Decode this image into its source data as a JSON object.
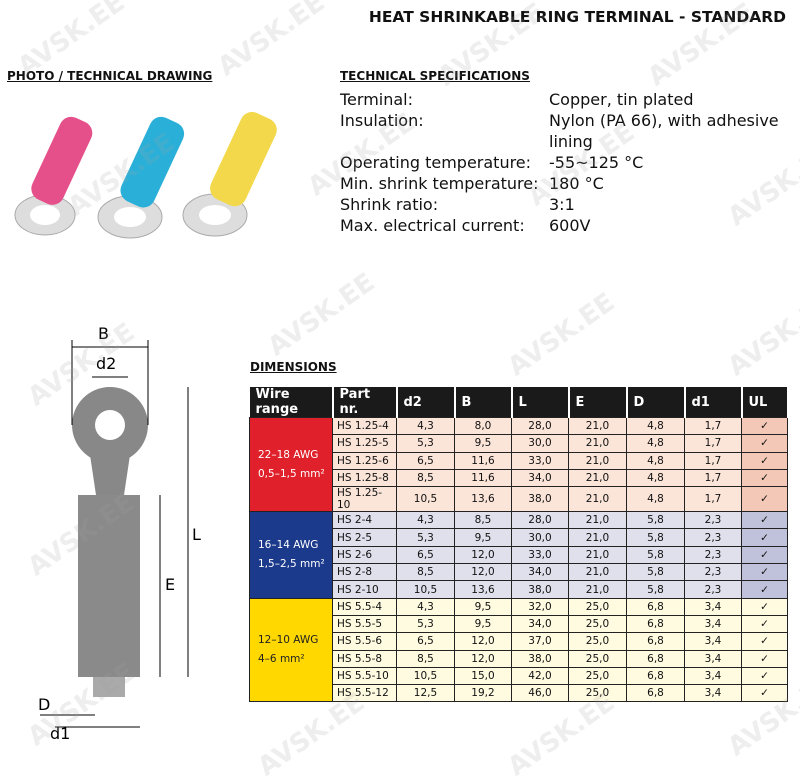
{
  "title": "HEAT SHRINKABLE RING TERMINAL - STANDARD",
  "photo_heading": "PHOTO / TECHNICAL DRAWING",
  "specs_heading": "TECHNICAL SPECIFICATIONS",
  "specs": [
    {
      "k": "Terminal:",
      "v": "Copper, tin plated"
    },
    {
      "k": "Insulation:",
      "v": "Nylon (PA 66), with adhesive lining"
    },
    {
      "k": "Operating temperature:",
      "v": "-55~125 °C"
    },
    {
      "k": "Min. shrink temperature:",
      "v": "180 °C"
    },
    {
      "k": "Shrink ratio:",
      "v": "3:1"
    },
    {
      "k": "Max. electrical current:",
      "v": "600V"
    }
  ],
  "drawing_labels": {
    "B": "B",
    "d2": "d2",
    "L": "L",
    "E": "E",
    "D": "D",
    "d1": "d1"
  },
  "dimensions_heading": "DIMENSIONS",
  "watermark": "AVSK.EE",
  "table": {
    "headers": [
      "Wire range",
      "Part nr.",
      "d2",
      "B",
      "L",
      "E",
      "D",
      "d1",
      "UL"
    ],
    "groups": [
      {
        "awg": "22–18 AWG",
        "mm": "0,5–1,5 mm²",
        "color": "#e0202a",
        "rows": [
          [
            "HS 1.25-4",
            "4,3",
            "8,0",
            "28,0",
            "21,0",
            "4,8",
            "1,7",
            "✓"
          ],
          [
            "HS 1.25-5",
            "5,3",
            "9,5",
            "30,0",
            "21,0",
            "4,8",
            "1,7",
            "✓"
          ],
          [
            "HS 1.25-6",
            "6,5",
            "11,6",
            "33,0",
            "21,0",
            "4,8",
            "1,7",
            "✓"
          ],
          [
            "HS 1.25-8",
            "8,5",
            "11,6",
            "34,0",
            "21,0",
            "4,8",
            "1,7",
            "✓"
          ],
          [
            "HS 1.25-10",
            "10,5",
            "13,6",
            "38,0",
            "21,0",
            "4,8",
            "1,7",
            "✓"
          ]
        ]
      },
      {
        "awg": "16–14 AWG",
        "mm": "1,5–2,5 mm²",
        "color": "#1c3a8c",
        "rows": [
          [
            "HS 2-4",
            "4,3",
            "8,5",
            "28,0",
            "21,0",
            "5,8",
            "2,3",
            "✓"
          ],
          [
            "HS 2-5",
            "5,3",
            "9,5",
            "30,0",
            "21,0",
            "5,8",
            "2,3",
            "✓"
          ],
          [
            "HS 2-6",
            "6,5",
            "12,0",
            "33,0",
            "21,0",
            "5,8",
            "2,3",
            "✓"
          ],
          [
            "HS 2-8",
            "8,5",
            "12,0",
            "34,0",
            "21,0",
            "5,8",
            "2,3",
            "✓"
          ],
          [
            "HS 2-10",
            "10,5",
            "13,6",
            "38,0",
            "21,0",
            "5,8",
            "2,3",
            "✓"
          ]
        ]
      },
      {
        "awg": "12–10 AWG",
        "mm": "4–6 mm²",
        "color": "#ffd800",
        "rows": [
          [
            "HS 5.5-4",
            "4,3",
            "9,5",
            "32,0",
            "25,0",
            "6,8",
            "3,4",
            "✓"
          ],
          [
            "HS 5.5-5",
            "5,3",
            "9,5",
            "34,0",
            "25,0",
            "6,8",
            "3,4",
            "✓"
          ],
          [
            "HS 5.5-6",
            "6,5",
            "12,0",
            "37,0",
            "25,0",
            "6,8",
            "3,4",
            "✓"
          ],
          [
            "HS 5.5-8",
            "8,5",
            "12,0",
            "38,0",
            "25,0",
            "6,8",
            "3,4",
            "✓"
          ],
          [
            "HS 5.5-10",
            "10,5",
            "15,0",
            "42,0",
            "25,0",
            "6,8",
            "3,4",
            "✓"
          ],
          [
            "HS 5.5-12",
            "12,5",
            "19,2",
            "46,0",
            "25,0",
            "6,8",
            "3,4",
            "✓"
          ]
        ]
      }
    ]
  }
}
